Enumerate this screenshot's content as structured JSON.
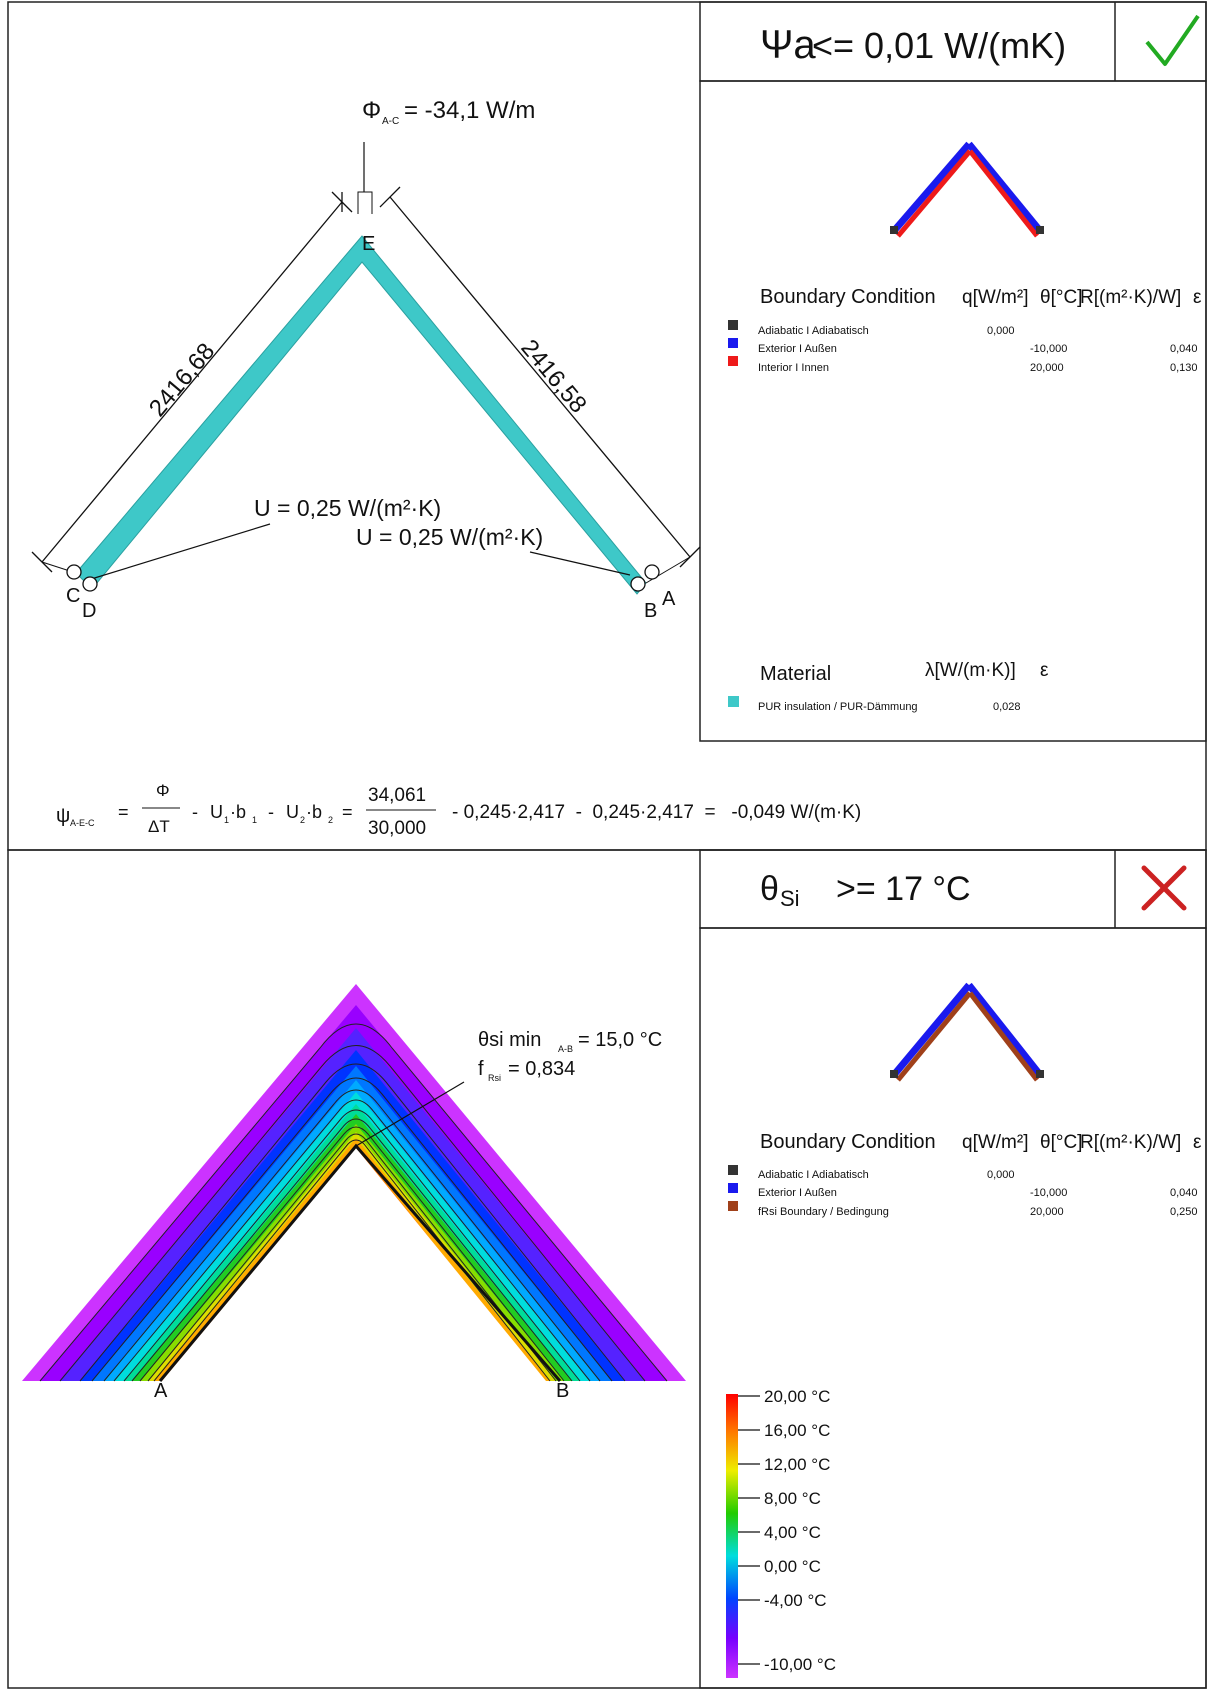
{
  "top": {
    "criterion": {
      "symbol": "Ψa",
      "text": "<= 0,01 W/(mK)",
      "status": "pass",
      "status_color": "#22aa22"
    },
    "heat_flow": {
      "symbol": "Φ",
      "sub": "A-C",
      "text": "= -34,1 W/m"
    },
    "dimensions": {
      "left": "2416,68",
      "right": "2416,58"
    },
    "u_values": {
      "first": "U = 0,25 W/(m²·K)",
      "second": "U = 0,25 W/(m²·K)"
    },
    "points": {
      "a": "A",
      "b": "B",
      "c": "C",
      "d": "D",
      "e": "E"
    },
    "boundary": {
      "header": {
        "col1": "Boundary Condition",
        "col2": "q[W/m²]",
        "col3": "θ[°C]",
        "col4": "R[(m²·K)/W]",
        "col5": "ε"
      },
      "rows": [
        {
          "label": "Adiabatic I Adiabatisch",
          "q": "0,000",
          "theta": "",
          "r": "",
          "color": "#333333"
        },
        {
          "label": "Exterior  I  Außen",
          "q": "",
          "theta": "-10,000",
          "r": "0,040",
          "color": "#1a1aee"
        },
        {
          "label": "Interior I Innen",
          "q": "",
          "theta": "20,000",
          "r": "0,130",
          "color": "#ee1a1a"
        }
      ]
    },
    "material": {
      "header": {
        "col1": "Material",
        "col2": "λ[W/(m·K)]",
        "col3": "ε"
      },
      "rows": [
        {
          "label": "PUR insulation / PUR-Dämmung",
          "lambda": "0,028",
          "color": "#3ec8c8"
        }
      ]
    },
    "insulation_color": "#3ec8c8"
  },
  "formula": {
    "psi": "ψ",
    "psi_sub": "A-E-C",
    "eq1": "=",
    "phi": "Φ",
    "dt": "ΔT",
    "m1": "-",
    "u1": "U",
    "u1_sub": "1",
    "dot1": "·b",
    "b1_sub": "1",
    "m2": "-",
    "u2": "U",
    "u2_sub": "2",
    "dot2": "·b",
    "b2_sub": "2",
    "eq2": "=",
    "num": "34,061",
    "den": "30,000",
    "rest": "- 0,245·2,417  -  0,245·2,417  =   -0,049 W/(m·K)"
  },
  "bottom": {
    "criterion": {
      "symbol": "θ",
      "sub": "Si",
      "text": ">= 17 °C",
      "status": "fail",
      "status_color": "#cc2222"
    },
    "min_temp": {
      "text1": "θsi min",
      "sub": "A-B",
      "text2": "= 15,0 °C"
    },
    "frsi": {
      "text1": "f",
      "sub": "Rsi",
      "text2": "= 0,834"
    },
    "points": {
      "a": "A",
      "b": "B"
    },
    "boundary": {
      "header": {
        "col1": "Boundary Condition",
        "col2": "q[W/m²]",
        "col3": "θ[°C]",
        "col4": "R[(m²·K)/W]",
        "col5": "ε"
      },
      "rows": [
        {
          "label": "Adiabatic I Adiabatisch",
          "q": "0,000",
          "theta": "",
          "r": "",
          "color": "#333333"
        },
        {
          "label": "Exterior  I  Außen",
          "q": "",
          "theta": "-10,000",
          "r": "0,040",
          "color": "#1a1aee"
        },
        {
          "label": "fRsi Boundary  / Bedingung",
          "q": "",
          "theta": "20,000",
          "r": "0,250",
          "color": "#a0401a"
        }
      ]
    },
    "legend": {
      "ticks": [
        "20,00 °C",
        "16,00 °C",
        "12,00 °C",
        "8,00 °C",
        "4,00 °C",
        "0,00 °C",
        "-4,00 °C",
        "-10,00 °C"
      ],
      "colors": [
        "#ff0000",
        "#ff8800",
        "#eeee00",
        "#33cc00",
        "#00cccc",
        "#0033ff",
        "#8800ff",
        "#cc33ff"
      ]
    }
  }
}
